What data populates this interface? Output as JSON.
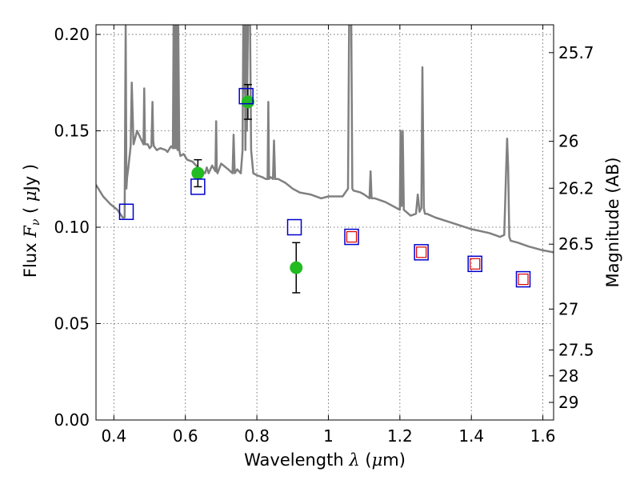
{
  "chart_data": {
    "type": "scatter",
    "title": "",
    "xlabel": {
      "text": "Wavelength",
      "symbol": "λ",
      "unit_open": "(",
      "unit_mu": "μ",
      "unit_rest": "m)"
    },
    "ylabel": {
      "text": "Flux",
      "symbol": "F",
      "subscript": "ν",
      "unit_open": "(",
      "unit_mu": "μ",
      "unit_rest": "Jy",
      "unit_close": ")"
    },
    "ylabel_right": "Magnitude (AB)",
    "xlim": [
      0.35,
      1.63
    ],
    "ylim": [
      0.0,
      0.205
    ],
    "grid": true,
    "x_ticks": [
      {
        "value": 0.4,
        "label": "0.4"
      },
      {
        "value": 0.6,
        "label": "0.6"
      },
      {
        "value": 0.8,
        "label": "0.8"
      },
      {
        "value": 1.0,
        "label": "1"
      },
      {
        "value": 1.2,
        "label": "1.2"
      },
      {
        "value": 1.4,
        "label": "1.4"
      },
      {
        "value": 1.6,
        "label": "1.6"
      }
    ],
    "y_ticks": [
      {
        "value": 0.0,
        "label": "0.00"
      },
      {
        "value": 0.05,
        "label": "0.05"
      },
      {
        "value": 0.1,
        "label": "0.10"
      },
      {
        "value": 0.15,
        "label": "0.15"
      },
      {
        "value": 0.2,
        "label": "0.20"
      }
    ],
    "magnitude_ticks": [
      {
        "value": 25.7,
        "label": "25.7"
      },
      {
        "value": 26.0,
        "label": "26"
      },
      {
        "value": 26.2,
        "label": "26.2"
      },
      {
        "value": 26.5,
        "label": "26.5"
      },
      {
        "value": 27.0,
        "label": "27"
      },
      {
        "value": 27.5,
        "label": "27.5"
      },
      {
        "value": 28.0,
        "label": "28"
      },
      {
        "value": 29.0,
        "label": "29"
      }
    ],
    "colors": {
      "model": "#808080",
      "observed": "#22bb22",
      "model_band": "#0000cc",
      "inner_box": "#dd0000",
      "errorbar": "#000000"
    },
    "model_spectrum": {
      "x": [
        0.35,
        0.37,
        0.39,
        0.41,
        0.425,
        0.43,
        0.432,
        0.433,
        0.434,
        0.435,
        0.437,
        0.44,
        0.447,
        0.45,
        0.455,
        0.465,
        0.475,
        0.483,
        0.485,
        0.487,
        0.495,
        0.5,
        0.505,
        0.508,
        0.51,
        0.512,
        0.52,
        0.53,
        0.545,
        0.55,
        0.56,
        0.565,
        0.567,
        0.569,
        0.571,
        0.573,
        0.575,
        0.578,
        0.58,
        0.583,
        0.586,
        0.595,
        0.605,
        0.62,
        0.64,
        0.655,
        0.66,
        0.665,
        0.675,
        0.684,
        0.686,
        0.688,
        0.69,
        0.7,
        0.72,
        0.732,
        0.735,
        0.738,
        0.745,
        0.755,
        0.76,
        0.762,
        0.764,
        0.766,
        0.768,
        0.77,
        0.772,
        0.775,
        0.778,
        0.781,
        0.784,
        0.79,
        0.8,
        0.815,
        0.825,
        0.83,
        0.832,
        0.834,
        0.838,
        0.845,
        0.848,
        0.851,
        0.86,
        0.88,
        0.9,
        0.92,
        0.95,
        0.98,
        1.0,
        1.02,
        1.04,
        1.055,
        1.058,
        1.061,
        1.064,
        1.067,
        1.07,
        1.09,
        1.1,
        1.115,
        1.118,
        1.121,
        1.13,
        1.16,
        1.19,
        1.2,
        1.202,
        1.205,
        1.208,
        1.211,
        1.23,
        1.245,
        1.25,
        1.255,
        1.26,
        1.263,
        1.267,
        1.27,
        1.275,
        1.3,
        1.35,
        1.4,
        1.45,
        1.48,
        1.492,
        1.497,
        1.5,
        1.503,
        1.506,
        1.51,
        1.53,
        1.56,
        1.6,
        1.63
      ],
      "y": [
        0.122,
        0.116,
        0.112,
        0.109,
        0.105,
        0.105,
        0.17,
        0.205,
        0.17,
        0.12,
        0.126,
        0.13,
        0.142,
        0.175,
        0.143,
        0.15,
        0.146,
        0.143,
        0.172,
        0.143,
        0.143,
        0.141,
        0.142,
        0.165,
        0.145,
        0.142,
        0.14,
        0.141,
        0.14,
        0.139,
        0.142,
        0.141,
        0.205,
        0.141,
        0.205,
        0.141,
        0.205,
        0.14,
        0.205,
        0.14,
        0.137,
        0.138,
        0.135,
        0.134,
        0.13,
        0.128,
        0.131,
        0.128,
        0.132,
        0.129,
        0.155,
        0.129,
        0.128,
        0.133,
        0.13,
        0.128,
        0.148,
        0.128,
        0.13,
        0.128,
        0.14,
        0.205,
        0.17,
        0.205,
        0.14,
        0.205,
        0.15,
        0.205,
        0.205,
        0.205,
        0.14,
        0.128,
        0.127,
        0.126,
        0.125,
        0.125,
        0.165,
        0.125,
        0.126,
        0.125,
        0.145,
        0.125,
        0.125,
        0.123,
        0.12,
        0.118,
        0.117,
        0.115,
        0.116,
        0.116,
        0.116,
        0.12,
        0.205,
        0.205,
        0.205,
        0.12,
        0.119,
        0.118,
        0.117,
        0.115,
        0.129,
        0.115,
        0.115,
        0.113,
        0.11,
        0.109,
        0.15,
        0.111,
        0.15,
        0.109,
        0.106,
        0.107,
        0.117,
        0.108,
        0.11,
        0.183,
        0.11,
        0.107,
        0.107,
        0.105,
        0.102,
        0.099,
        0.097,
        0.095,
        0.096,
        0.129,
        0.146,
        0.131,
        0.095,
        0.093,
        0.092,
        0.09,
        0.088,
        0.087
      ]
    },
    "observed": [
      {
        "x": 0.635,
        "y": 0.128,
        "err": 0.007
      },
      {
        "x": 0.775,
        "y": 0.165,
        "err": 0.009
      },
      {
        "x": 0.91,
        "y": 0.079,
        "err": 0.013
      }
    ],
    "model_bands": [
      {
        "x": 0.435,
        "y": 0.108,
        "inner": false
      },
      {
        "x": 0.635,
        "y": 0.121,
        "inner": false
      },
      {
        "x": 0.77,
        "y": 0.168,
        "inner": false
      },
      {
        "x": 0.905,
        "y": 0.1,
        "inner": false
      },
      {
        "x": 1.065,
        "y": 0.095,
        "inner": true
      },
      {
        "x": 1.26,
        "y": 0.087,
        "inner": true
      },
      {
        "x": 1.41,
        "y": 0.081,
        "inner": true
      },
      {
        "x": 1.545,
        "y": 0.073,
        "inner": true
      }
    ]
  }
}
